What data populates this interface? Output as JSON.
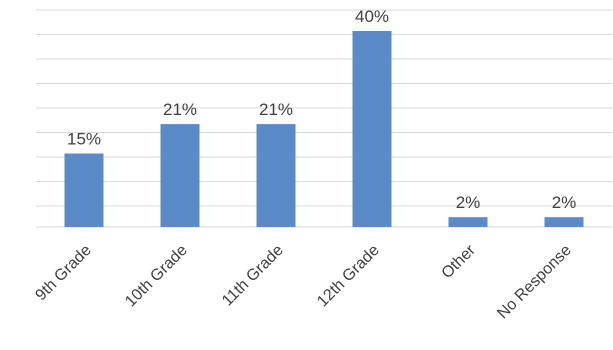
{
  "chart_data": {
    "type": "bar",
    "categories": [
      "9th Grade",
      "10th Grade",
      "11th Grade",
      "12th Grade",
      "Other",
      "No Response"
    ],
    "values": [
      15,
      21,
      21,
      40,
      2,
      2
    ],
    "data_labels": [
      "15%",
      "21%",
      "21%",
      "40%",
      "2%",
      "2%"
    ],
    "ylim": [
      0,
      40
    ],
    "grid": true,
    "title": "",
    "xlabel": "",
    "ylabel": ""
  },
  "colors": {
    "bar": "#5b8ac8",
    "grid": "#d9d9d9",
    "text": "#404040"
  }
}
